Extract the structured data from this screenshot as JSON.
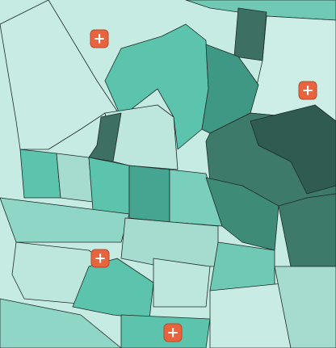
{
  "markers": [
    {
      "label": "+"
    },
    {
      "label": "+"
    },
    {
      "label": "+"
    },
    {
      "label": "+"
    }
  ]
}
